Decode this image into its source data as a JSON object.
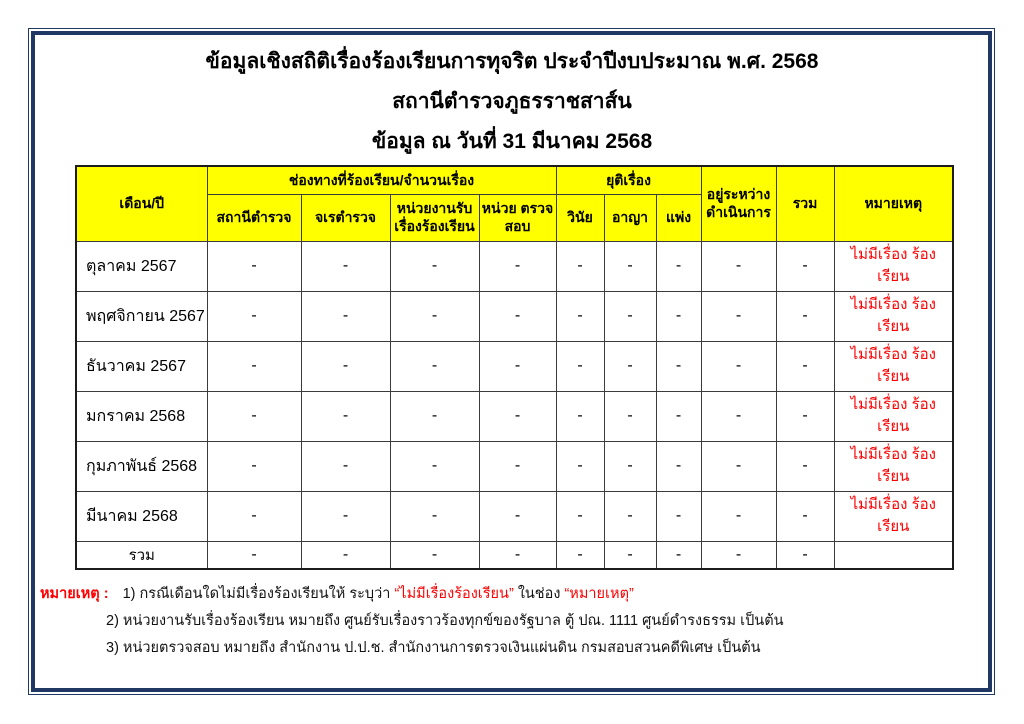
{
  "palette": {
    "frame_navy": "#1F3864",
    "header_yellow": "#FFFF00",
    "highlight_red": "#FF0000"
  },
  "header": {
    "title_line1": "ข้อมูลเชิงสถิติเรื่องร้องเรียนการทุจริต ประจำปีงบประมาณ พ.ศ. 2568",
    "title_line2": "สถานีตำรวจภูธรราชสาส์น",
    "title_line3": "ข้อมูล ณ วันที่ 31 มีนาคม 2568"
  },
  "table": {
    "columns": {
      "month": "เดือน/ปี",
      "channels_group": "ช่องทางที่ร้องเรียน/จำนวนเรื่อง",
      "channel_police_station": "สถานีตำรวจ",
      "channel_inspector": "จเรตำรวจ",
      "channel_complaint_agency": "หน่วยงานรับ เรื่องร้องเรียน",
      "channel_audit_unit": "หน่วย ตรวจสอบ",
      "concluded_group": "ยุติเรื่อง",
      "concluded_disciplinary": "วินัย",
      "concluded_criminal": "อาญา",
      "concluded_civil": "แพ่ง",
      "in_progress": "อยู่ระหว่าง ดำเนินการ",
      "total": "รวม",
      "remark": "หมายเหตุ"
    },
    "rows": [
      {
        "month": "ตุลาคม 2567",
        "values": [
          "-",
          "-",
          "-",
          "-",
          "-",
          "-",
          "-",
          "-",
          "-"
        ],
        "remark": "ไม่มีเรื่อง ร้องเรียน"
      },
      {
        "month": "พฤศจิกายน 2567",
        "values": [
          "-",
          "-",
          "-",
          "-",
          "-",
          "-",
          "-",
          "-",
          "-"
        ],
        "remark": "ไม่มีเรื่อง ร้องเรียน"
      },
      {
        "month": "ธันวาคม 2567",
        "values": [
          "-",
          "-",
          "-",
          "-",
          "-",
          "-",
          "-",
          "-",
          "-"
        ],
        "remark": "ไม่มีเรื่อง ร้องเรียน"
      },
      {
        "month": "มกราคม 2568",
        "values": [
          "-",
          "-",
          "-",
          "-",
          "-",
          "-",
          "-",
          "-",
          "-"
        ],
        "remark": "ไม่มีเรื่อง ร้องเรียน"
      },
      {
        "month": "กุมภาพันธ์ 2568",
        "values": [
          "-",
          "-",
          "-",
          "-",
          "-",
          "-",
          "-",
          "-",
          "-"
        ],
        "remark": "ไม่มีเรื่อง ร้องเรียน"
      },
      {
        "month": "มีนาคม 2568",
        "values": [
          "-",
          "-",
          "-",
          "-",
          "-",
          "-",
          "-",
          "-",
          "-"
        ],
        "remark": "ไม่มีเรื่อง ร้องเรียน"
      }
    ],
    "total_row": {
      "label": "รวม",
      "values": [
        "-",
        "-",
        "-",
        "-",
        "-",
        "-",
        "-",
        "-",
        "-"
      ],
      "remark": ""
    }
  },
  "notes": {
    "label": "หมายเหตุ :",
    "line1_prefix": "1) กรณีเดือนใดไม่มีเรื่องร้องเรียนให้ ระบุว่า",
    "line1_red1": "“ไม่มีเรื่องร้องเรียน”",
    "line1_mid": "ในช่อง",
    "line1_red2": "“หมายเหตุ”",
    "line2": "2) หน่วยงานรับเรื่องร้องเรียน หมายถึง ศูนย์รับเรื่องราวร้องทุกข์ของรัฐบาล ตู้ ปณ. 1111 ศูนย์ดำรงธรรม เป็นต้น",
    "line3": "3) หน่วยตรวจสอบ หมายถึง สำนักงาน ป.ป.ช. สำนักงานการตรวจเงินแผ่นดิน กรมสอบสวนคดีพิเศษ เป็นต้น"
  }
}
